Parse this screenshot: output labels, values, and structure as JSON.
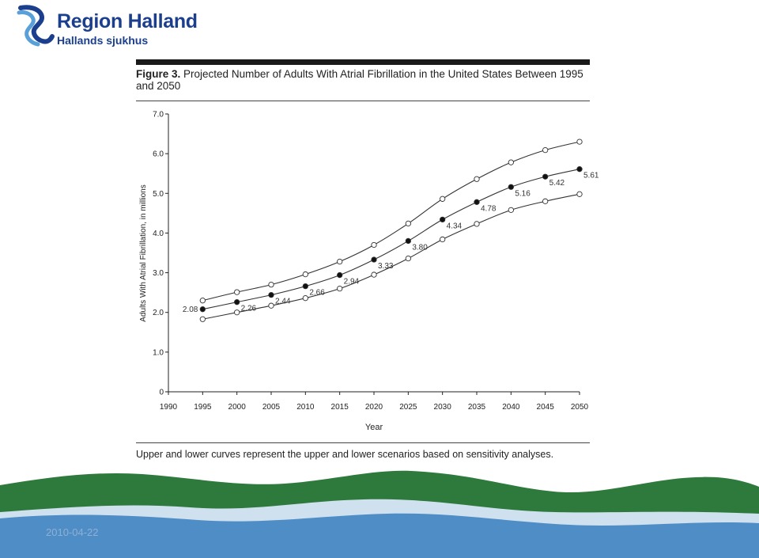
{
  "logo": {
    "title": "Region Halland",
    "subtitle": "Hallands sjukhus",
    "color": "#1b3f8c",
    "icon": "seahorse-logo-icon"
  },
  "figure": {
    "label": "Figure 3.",
    "title": "Projected Number of Adults With Atrial Fibrillation in the United States Between 1995 and 2050",
    "note": "Upper and lower curves represent the upper and lower scenarios based on sensitivity analyses."
  },
  "footer": {
    "date": "2010-04-22"
  },
  "chart_data": {
    "type": "line",
    "xlabel": "Year",
    "ylabel": "Adults With Atrial Fibrillation, in millions",
    "x_ticks": [
      1990,
      1995,
      2000,
      2005,
      2010,
      2015,
      2020,
      2025,
      2030,
      2035,
      2040,
      2045,
      2050
    ],
    "y_ticks": [
      "0",
      "1.0",
      "2.0",
      "3.0",
      "4.0",
      "5.0",
      "6.0",
      "7.0"
    ],
    "xlim": [
      1990,
      2050
    ],
    "ylim": [
      0,
      7
    ],
    "grid": false,
    "x": [
      1995,
      2000,
      2005,
      2010,
      2015,
      2020,
      2025,
      2030,
      2035,
      2040,
      2045,
      2050
    ],
    "series": [
      {
        "values": [
          2.3,
          2.51,
          2.7,
          2.96,
          3.28,
          3.7,
          4.24,
          4.86,
          5.36,
          5.78,
          6.09,
          6.3
        ],
        "marker": "open-circle",
        "labels": false
      },
      {
        "values": [
          2.08,
          2.26,
          2.44,
          2.66,
          2.94,
          3.33,
          3.8,
          4.34,
          4.78,
          5.16,
          5.42,
          5.61
        ],
        "marker": "filled-circle",
        "labels": true
      },
      {
        "values": [
          1.83,
          2.0,
          2.17,
          2.36,
          2.6,
          2.95,
          3.36,
          3.84,
          4.23,
          4.58,
          4.8,
          4.98
        ],
        "marker": "open-circle",
        "labels": false
      }
    ],
    "data_labels": [
      "2.08",
      "2.26",
      "2.44",
      "2.66",
      "2.94",
      "3.33",
      "3.80",
      "4.34",
      "4.78",
      "5.16",
      "5.42",
      "5.61"
    ],
    "colors": {
      "line": "#333333",
      "axis": "#222222"
    }
  },
  "wave_colors": {
    "green": "#2e7a3c",
    "blue": "#4f8dc7",
    "light": "#cfe0ef"
  }
}
